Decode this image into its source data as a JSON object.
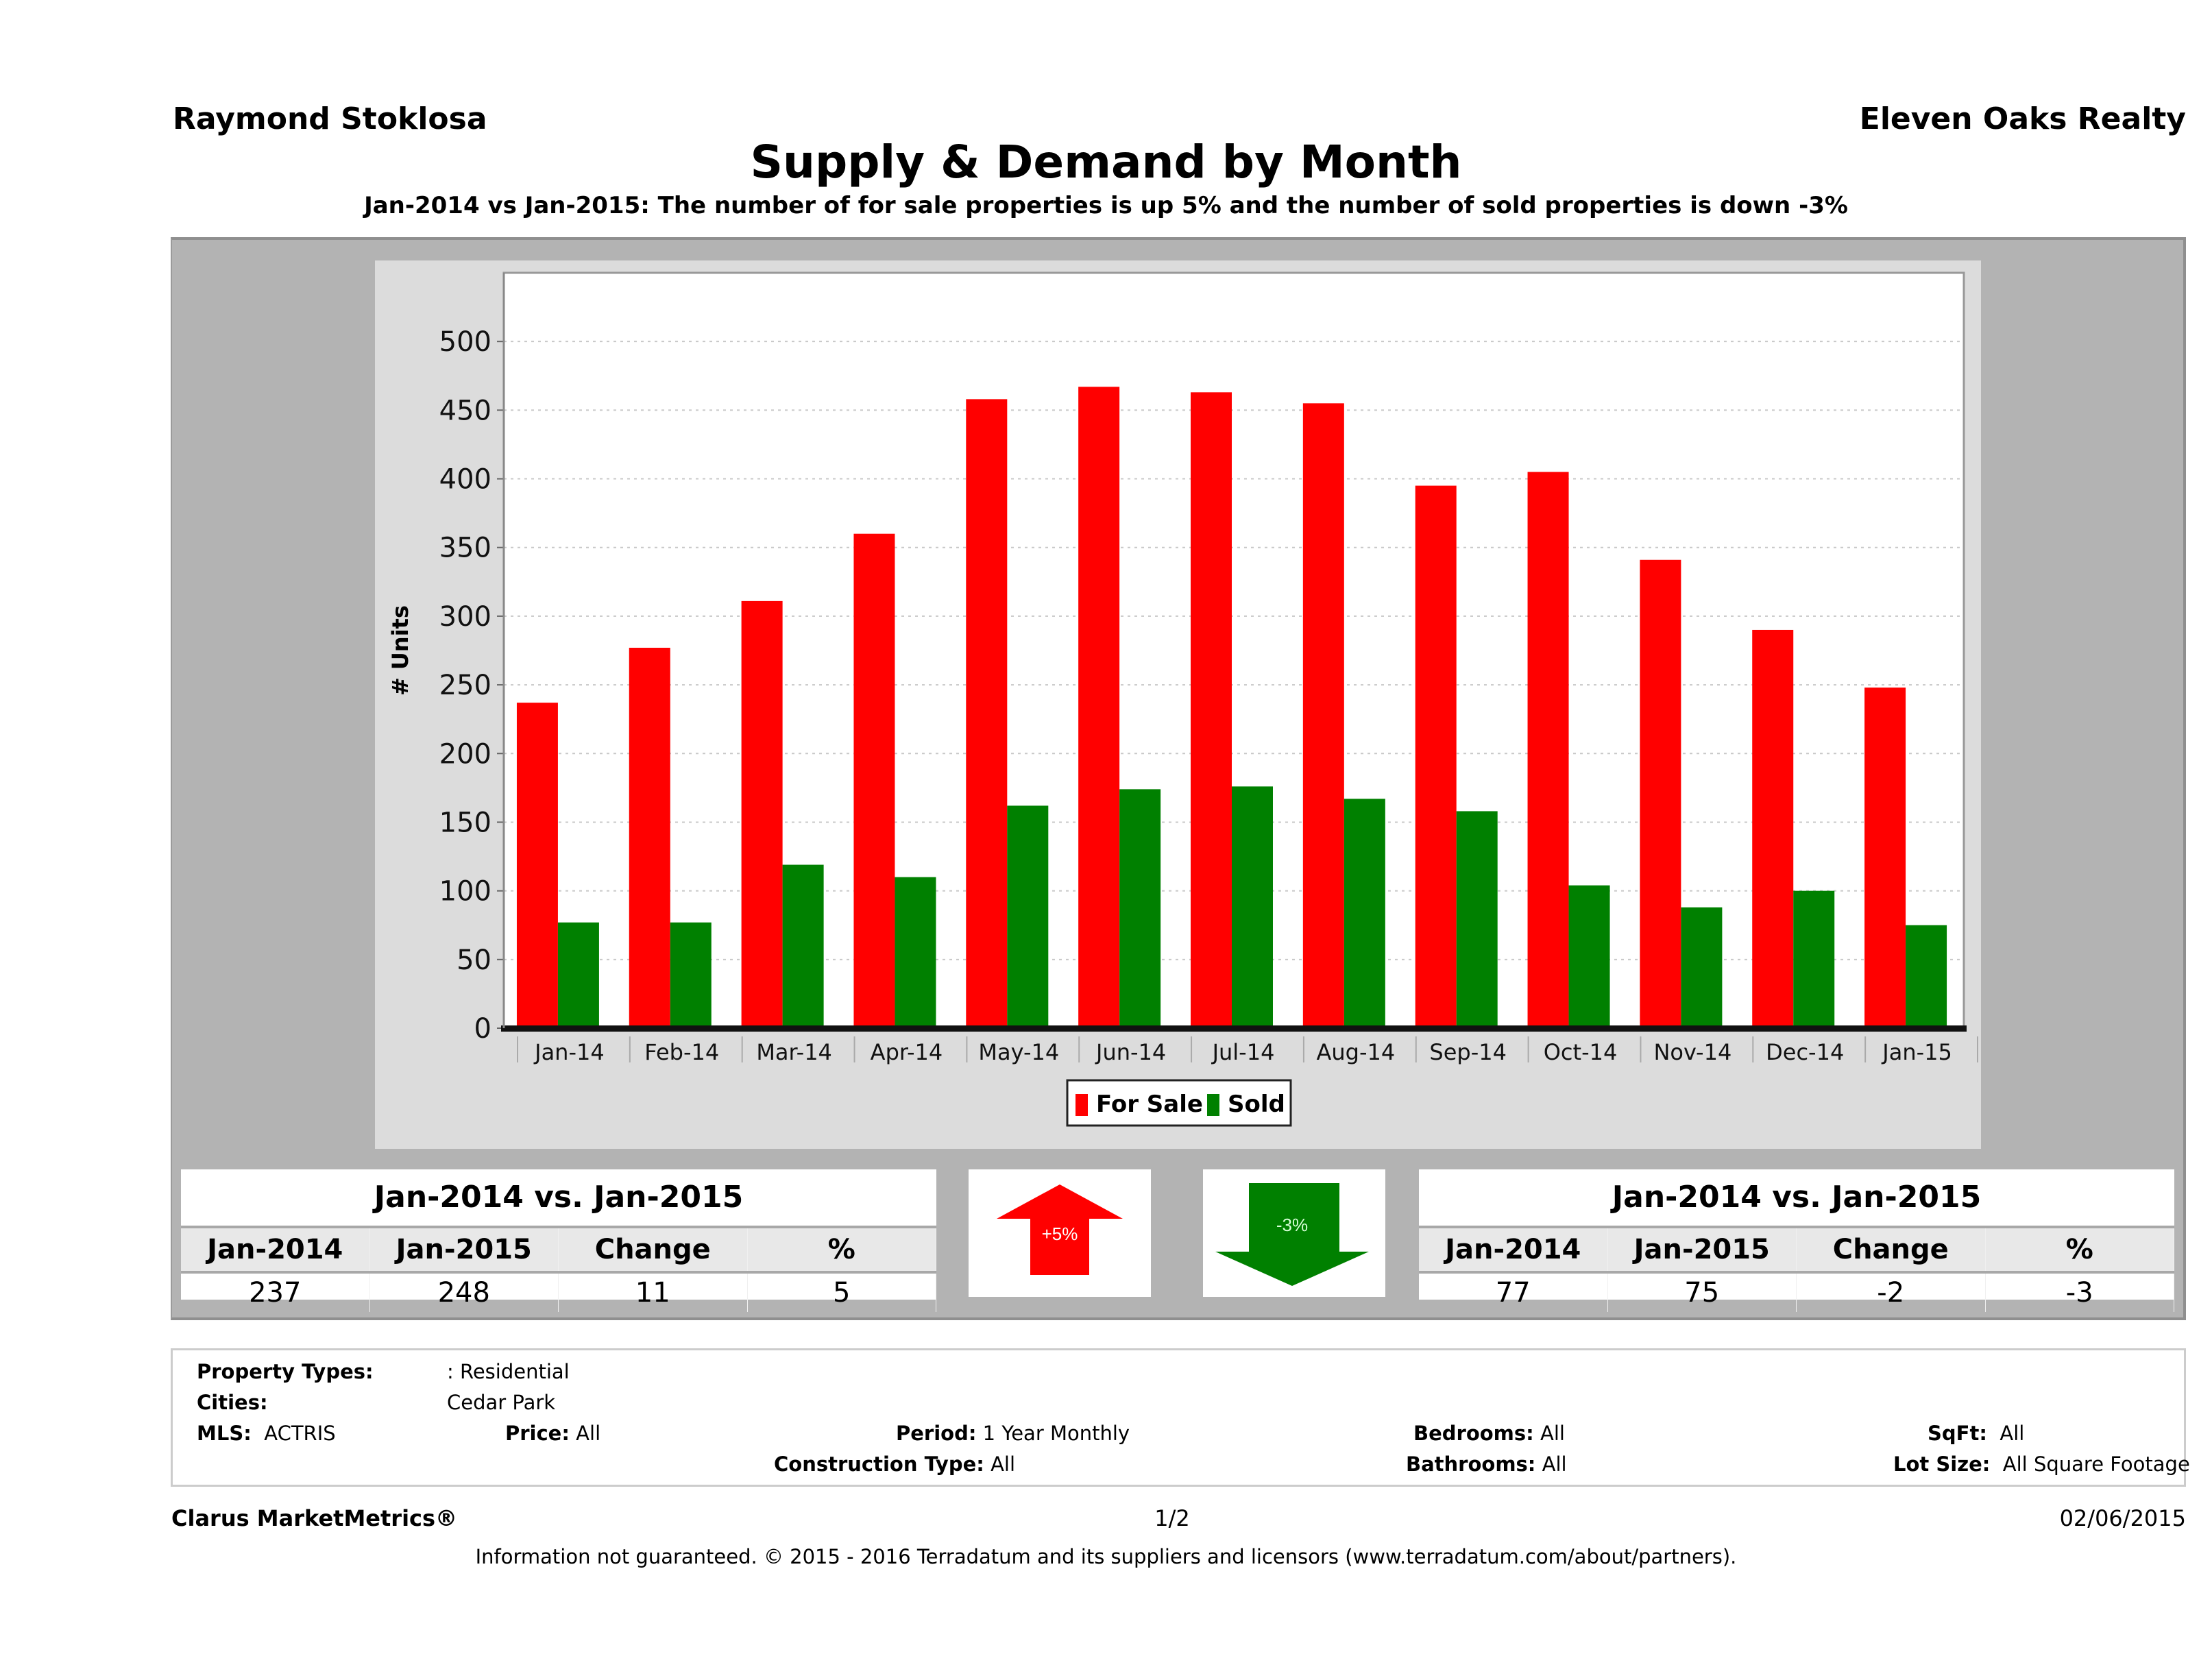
{
  "header": {
    "agent_name": "Raymond Stoklosa",
    "brokerage": "Eleven Oaks Realty",
    "title": "Supply & Demand by Month",
    "subtitle": "Jan-2014 vs Jan-2015: The number of for sale properties is up 5% and the number of sold properties is down -3%"
  },
  "colors": {
    "for_sale": "#ff0000",
    "sold": "#008000",
    "panel": "#b3b3b3",
    "chart_bg": "#dcdcdc"
  },
  "chart_data": {
    "type": "bar",
    "title": "Supply & Demand by Month",
    "xlabel": "",
    "ylabel": "# Units",
    "ylim": [
      0,
      550
    ],
    "yticks": [
      0,
      50,
      100,
      150,
      200,
      250,
      300,
      350,
      400,
      450,
      500
    ],
    "grid": true,
    "legend_position": "bottom",
    "categories": [
      "Jan-14",
      "Feb-14",
      "Mar-14",
      "Apr-14",
      "May-14",
      "Jun-14",
      "Jul-14",
      "Aug-14",
      "Sep-14",
      "Oct-14",
      "Nov-14",
      "Dec-14",
      "Jan-15"
    ],
    "series": [
      {
        "name": "For Sale",
        "color": "#ff0000",
        "values": [
          237,
          277,
          311,
          360,
          458,
          467,
          463,
          455,
          395,
          405,
          341,
          290,
          248
        ]
      },
      {
        "name": "Sold",
        "color": "#008000",
        "values": [
          77,
          77,
          119,
          110,
          162,
          174,
          176,
          167,
          158,
          104,
          88,
          100,
          75
        ]
      }
    ]
  },
  "for_sale_summary": {
    "title": "Jan-2014 vs. Jan-2015",
    "headers": [
      "Jan-2014",
      "Jan-2015",
      "Change",
      "%"
    ],
    "values": [
      "237",
      "248",
      "11",
      "5"
    ],
    "arrow_label": "+5%",
    "arrow_direction": "up"
  },
  "sold_summary": {
    "title": "Jan-2014 vs. Jan-2015",
    "headers": [
      "Jan-2014",
      "Jan-2015",
      "Change",
      "%"
    ],
    "values": [
      "77",
      "75",
      "-2",
      "-3"
    ],
    "arrow_label": "-3%",
    "arrow_direction": "down"
  },
  "criteria": {
    "property_types_label": "Property Types:",
    "property_types_value": ": Residential",
    "cities_label": "Cities:",
    "cities_value": "Cedar Park",
    "mls_label": "MLS:",
    "mls_value": "ACTRIS",
    "price_label": "Price:",
    "price_value": "All",
    "period_label": "Period:",
    "period_value": "1 Year Monthly",
    "construction_label": "Construction Type:",
    "construction_value": "All",
    "bedrooms_label": "Bedrooms:",
    "bedrooms_value": "All",
    "bathrooms_label": "Bathrooms:",
    "bathrooms_value": "All",
    "sqft_label": "SqFt:",
    "sqft_value": "All",
    "lotsize_label": "Lot Size:",
    "lotsize_value": "All Square Footage"
  },
  "footer": {
    "brand": "Clarus MarketMetrics®",
    "page": "1/2",
    "date": "02/06/2015",
    "disclaimer": "Information not guaranteed. © 2015 - 2016 Terradatum and its suppliers and licensors (www.terradatum.com/about/partners)."
  }
}
